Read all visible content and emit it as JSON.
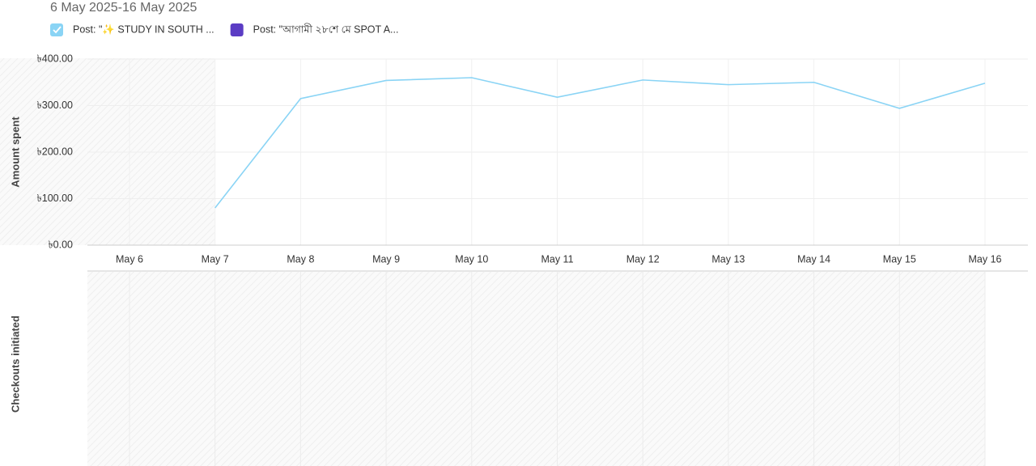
{
  "chart_data": {
    "type": "line",
    "title": "6 May 2025-16 May 2025",
    "y_label": "Amount spent",
    "second_panel_label": "Checkouts initiated",
    "categories": [
      "May 6",
      "May 7",
      "May 8",
      "May 9",
      "May 10",
      "May 11",
      "May 12",
      "May 13",
      "May 14",
      "May 15",
      "May 16"
    ],
    "series": [
      {
        "name": "Post: \"✨ STUDY IN SOUTH ...",
        "color": "#8ad4f5",
        "values": [
          null,
          80,
          315,
          354,
          360,
          318,
          355,
          345,
          350,
          294,
          348
        ]
      },
      {
        "name": "Post: \"আগামী ২৮শে মে SPOT A...",
        "color": "#5b3cc4",
        "values": [
          null,
          null,
          null,
          null,
          null,
          null,
          null,
          null,
          null,
          null,
          null
        ]
      }
    ],
    "ylim": [
      0,
      400
    ],
    "yticks": [
      {
        "value": 0,
        "label": "৳0.00"
      },
      {
        "value": 100,
        "label": "৳100.00"
      },
      {
        "value": 200,
        "label": "৳200.00"
      },
      {
        "value": 300,
        "label": "৳300.00"
      },
      {
        "value": 400,
        "label": "৳400.00"
      }
    ],
    "grid": true
  }
}
